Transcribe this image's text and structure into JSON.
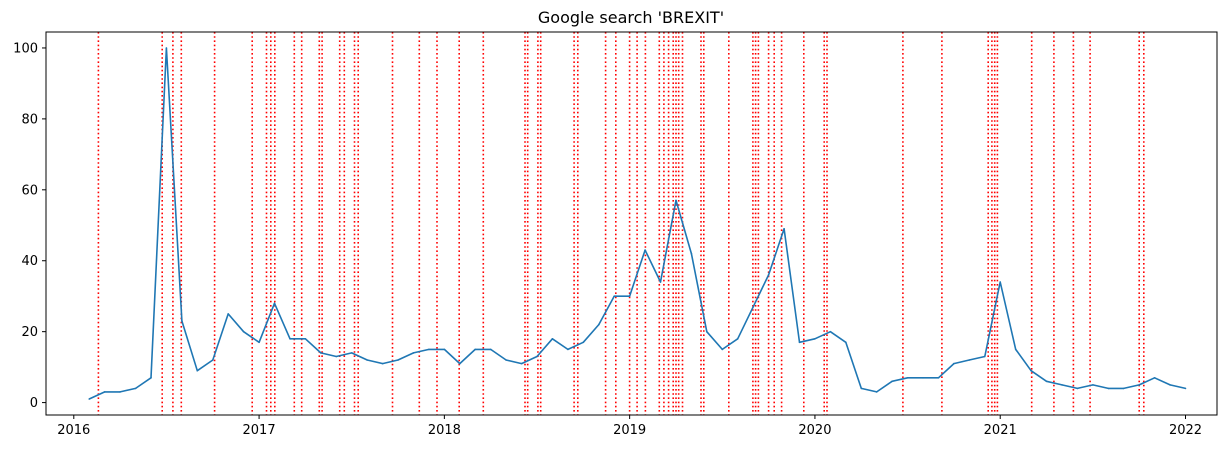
{
  "chart_data": {
    "type": "line",
    "title": "Google search 'BREXIT'",
    "xlabel": "",
    "ylabel": "",
    "xlim": [
      2015.85,
      2022.17
    ],
    "ylim": [
      -3.5,
      104.5
    ],
    "x_ticks": [
      2016,
      2017,
      2018,
      2019,
      2020,
      2021,
      2022
    ],
    "y_ticks": [
      0,
      20,
      40,
      60,
      80,
      100
    ],
    "grid": false,
    "colors": {
      "series": "#1f77b4",
      "events": "#ff0000"
    },
    "series": [
      {
        "x": [
          "2016-02",
          "2016-03",
          "2016-04",
          "2016-05",
          "2016-06",
          "2016-07",
          "2016-08",
          "2016-09",
          "2016-10",
          "2016-11",
          "2016-12",
          "2017-01",
          "2017-02",
          "2017-03",
          "2017-04",
          "2017-05",
          "2017-06",
          "2017-07",
          "2017-08",
          "2017-09",
          "2017-10",
          "2017-11",
          "2017-12",
          "2018-01",
          "2018-02",
          "2018-03",
          "2018-04",
          "2018-05",
          "2018-06",
          "2018-07",
          "2018-08",
          "2018-09",
          "2018-10",
          "2018-11",
          "2018-12",
          "2019-01",
          "2019-02",
          "2019-03",
          "2019-04",
          "2019-05",
          "2019-06",
          "2019-07",
          "2019-08",
          "2019-09",
          "2019-10",
          "2019-11",
          "2019-12",
          "2020-01",
          "2020-02",
          "2020-03",
          "2020-04",
          "2020-05",
          "2020-06",
          "2020-07",
          "2020-08",
          "2020-09",
          "2020-10",
          "2020-11",
          "2020-12",
          "2021-01",
          "2021-02",
          "2021-03",
          "2021-04",
          "2021-05",
          "2021-06",
          "2021-07",
          "2021-08",
          "2021-09",
          "2021-10",
          "2021-11",
          "2021-12",
          "2022-01"
        ],
        "values": [
          1,
          3,
          3,
          4,
          7,
          100,
          23,
          9,
          12,
          25,
          20,
          17,
          28,
          18,
          18,
          14,
          13,
          14,
          12,
          11,
          12,
          14,
          15,
          15,
          11,
          15,
          15,
          12,
          11,
          13,
          18,
          15,
          17,
          22,
          30,
          30,
          43,
          34,
          57,
          42,
          20,
          15,
          18,
          27,
          36,
          49,
          17,
          18,
          20,
          17,
          4,
          3,
          6,
          7,
          7,
          7,
          11,
          12,
          13,
          34,
          15,
          9,
          6,
          5,
          4,
          5,
          4,
          4,
          5,
          7,
          5,
          4
        ]
      }
    ],
    "event_lines": [
      2016.133,
      2016.477,
      2016.535,
      2016.58,
      2016.76,
      2016.963,
      2017.04,
      2017.063,
      2017.085,
      2017.19,
      2017.23,
      2017.325,
      2017.34,
      2017.435,
      2017.46,
      2017.515,
      2017.535,
      2017.72,
      2017.865,
      2017.96,
      2018.08,
      2018.21,
      2018.435,
      2018.45,
      2018.505,
      2018.52,
      2018.7,
      2018.72,
      2018.87,
      2018.925,
      2019.0,
      2019.04,
      2019.085,
      2019.16,
      2019.185,
      2019.21,
      2019.235,
      2019.25,
      2019.265,
      2019.285,
      2019.385,
      2019.4,
      2019.535,
      2019.665,
      2019.68,
      2019.695,
      2019.75,
      2019.78,
      2019.82,
      2019.94,
      2020.05,
      2020.065,
      2020.475,
      2020.685,
      2020.935,
      2020.955,
      2020.97,
      2020.985,
      2021.17,
      2021.29,
      2021.395,
      2021.485,
      2021.75,
      2021.775
    ]
  }
}
